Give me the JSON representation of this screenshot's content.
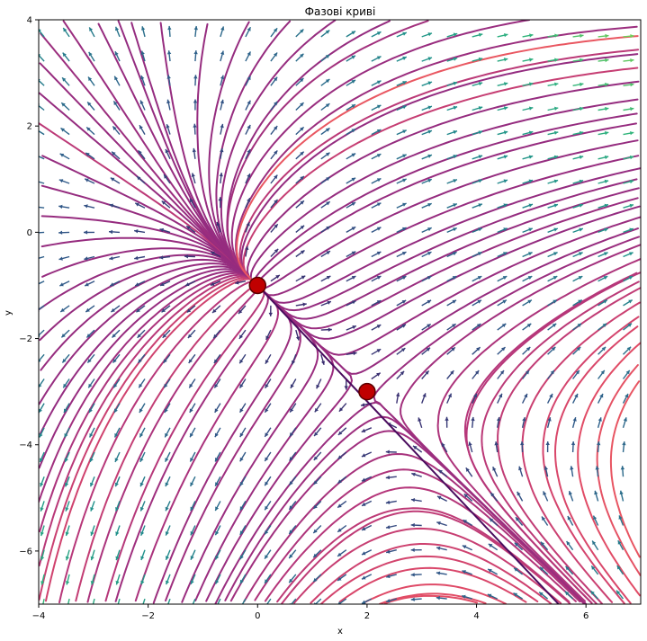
{
  "chart_data": {
    "type": "streamplot",
    "title": "Фазові криві",
    "xlabel": "x",
    "ylabel": "y",
    "xlim": [
      -4,
      7
    ],
    "ylim": [
      -7,
      4
    ],
    "xticks": [
      -4,
      -2,
      0,
      2,
      4,
      6
    ],
    "yticks": [
      -6,
      -4,
      -2,
      0,
      2,
      4
    ],
    "xtick_labels": [
      "−4",
      "−2",
      "0",
      "2",
      "4",
      "6"
    ],
    "ytick_labels": [
      "−6",
      "−4",
      "−2",
      "0",
      "2",
      "4"
    ],
    "grid": false,
    "legend": "none",
    "colormap": "inferno-to-yellow",
    "quiver_colormap": "viridis",
    "equilibrium_points": [
      {
        "x": 0,
        "y": -1
      },
      {
        "x": 2,
        "y": -3
      }
    ],
    "separatrix": {
      "from": [
        0,
        -1
      ],
      "to": [
        5.5,
        -7
      ]
    },
    "colors": {
      "equilibrium_fill": "#c00000",
      "equilibrium_edge": "#5a0000",
      "separatrix": "#4a0c5e"
    }
  }
}
